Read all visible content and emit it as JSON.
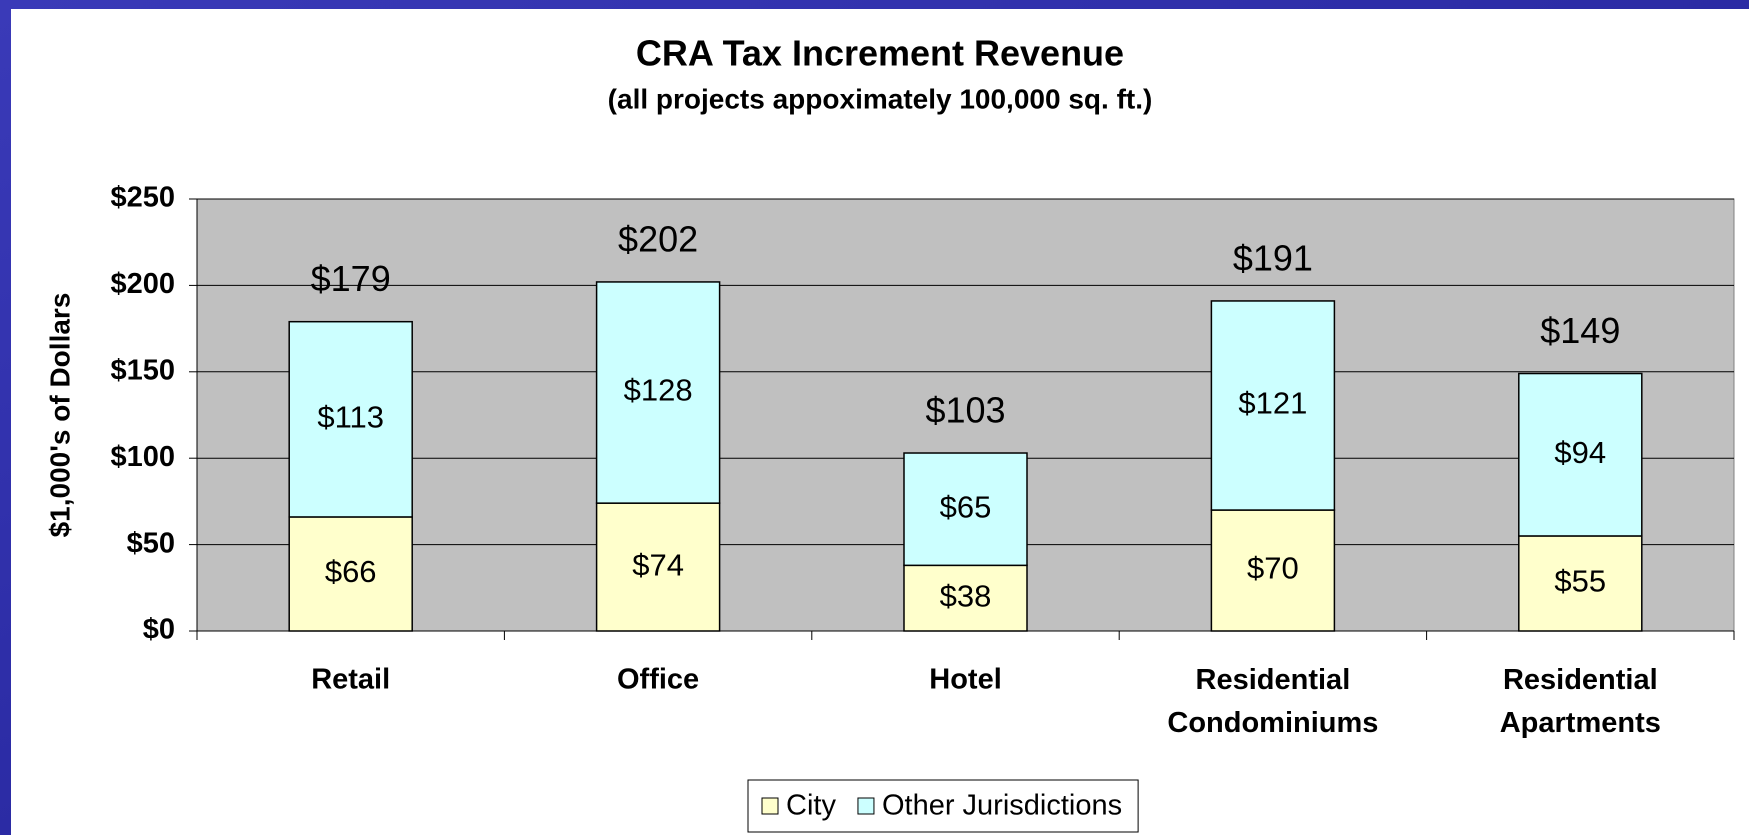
{
  "chart_data": {
    "type": "stacked_bar",
    "title": "CRA Tax Increment Revenue",
    "subtitle": "(all projects appoximately 100,000 sq. ft.)",
    "y_label": "$1,000's of Dollars",
    "categories": [
      "Retail",
      "Office",
      "Hotel",
      "Residential Condominiums",
      "Residential Apartments"
    ],
    "series": [
      {
        "name": "City",
        "color": "#ffffcc",
        "values": [
          66,
          74,
          38,
          70,
          55
        ],
        "value_labels": [
          "$66",
          "$74",
          "$38",
          "$70",
          "$55"
        ]
      },
      {
        "name": "Other Jurisdictions",
        "color": "#ccffff",
        "values": [
          113,
          128,
          65,
          121,
          94
        ],
        "value_labels": [
          "$113",
          "$128",
          "$65",
          "$121",
          "$94"
        ]
      }
    ],
    "total_labels": [
      "$179",
      "$202",
      "$103",
      "$191",
      "$149"
    ],
    "ylim": [
      0,
      250
    ],
    "yticks": [
      {
        "value": 0,
        "label": "$0"
      },
      {
        "value": 50,
        "label": "$50"
      },
      {
        "value": 100,
        "label": "$100"
      },
      {
        "value": 150,
        "label": "$150"
      },
      {
        "value": 200,
        "label": "$200"
      },
      {
        "value": 250,
        "label": "$250"
      }
    ],
    "grid": true,
    "plot_background": "#c0c0c0",
    "legend": "bottom"
  }
}
